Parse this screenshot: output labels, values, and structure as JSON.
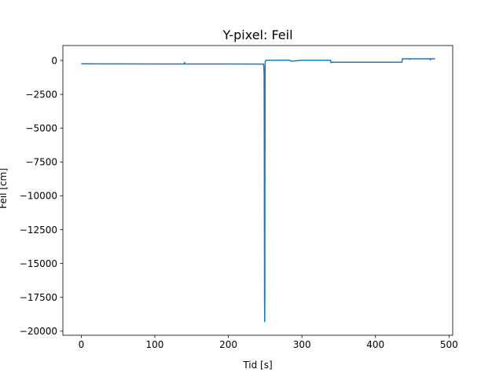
{
  "chart_data": {
    "type": "line",
    "title": "Y-pixel: Feil",
    "xlabel": "Tid [s]",
    "ylabel": "Feil [cm]",
    "xlim": [
      -25,
      505
    ],
    "ylim": [
      -20300,
      1100
    ],
    "xticks": [
      0,
      100,
      200,
      300,
      400,
      500
    ],
    "yticks": [
      0,
      -2500,
      -5000,
      -7500,
      -10000,
      -12500,
      -15000,
      -17500,
      -20000
    ],
    "xtick_labels": [
      "0",
      "100",
      "200",
      "300",
      "400",
      "500"
    ],
    "ytick_labels": [
      "0",
      "−2500",
      "−5000",
      "−7500",
      "−10000",
      "−12500",
      "−15000",
      "−17500",
      "−20000"
    ],
    "grid": false,
    "series": [
      {
        "color": "#1f77b4",
        "x": [
          0,
          50,
          100,
          140,
          140.5,
          141,
          200,
          248,
          248.6,
          248.8,
          249.0,
          249.2,
          249.4,
          249.6,
          249.8,
          250,
          250.2,
          250.4,
          251,
          252,
          253,
          260,
          280,
          283,
          285,
          300,
          320,
          339,
          339.5,
          340,
          341,
          360,
          400,
          436,
          436.5,
          440,
          446,
          446.5,
          447,
          460,
          474,
          474.5,
          475,
          481
        ],
        "y": [
          -250,
          -255,
          -260,
          -262,
          -150,
          -262,
          -265,
          -270,
          -1000,
          -5000,
          -12000,
          -18000,
          -19300,
          -17000,
          -5500,
          -300,
          -100,
          -50,
          0,
          10,
          10,
          15,
          20,
          20,
          -50,
          10,
          10,
          10,
          -170,
          -150,
          -130,
          -130,
          -130,
          -130,
          120,
          120,
          120,
          70,
          120,
          120,
          120,
          40,
          120,
          120
        ]
      }
    ]
  }
}
